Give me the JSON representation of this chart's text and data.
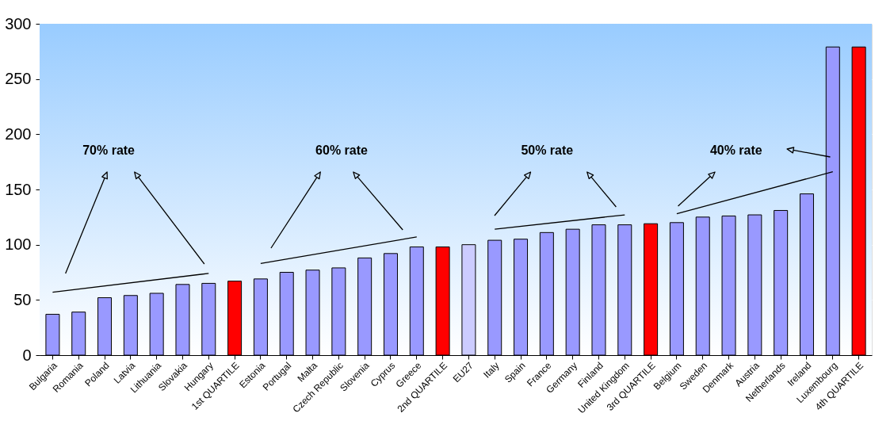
{
  "chart_data": {
    "type": "bar",
    "categories": [
      "Bulgaria",
      "Romania",
      "Poland",
      "Latvia",
      "Lithuania",
      "Slovakia",
      "Hungary",
      "1st QUARTILE",
      "Estonia",
      "Portugal",
      "Malta",
      "Czech Republic",
      "Slovenia",
      "Cyprus",
      "Greece",
      "2nd QUARTILE",
      "EU27",
      "Italy",
      "Spain",
      "France",
      "Germany",
      "Finland",
      "United Kingdom",
      "3rd QUARTILE",
      "Belgium",
      "Sweden",
      "Denmark",
      "Austria",
      "Netherlands",
      "Ireland",
      "Luxembourg",
      "4th QUARTILE"
    ],
    "values": [
      37,
      39,
      52,
      54,
      56,
      64,
      65,
      67,
      69,
      75,
      77,
      79,
      88,
      92,
      98,
      98,
      100,
      104,
      105,
      111,
      114,
      118,
      118,
      119,
      120,
      125,
      126,
      127,
      131,
      146,
      279,
      279
    ],
    "colors": [
      "#9999ff",
      "#9999ff",
      "#9999ff",
      "#9999ff",
      "#9999ff",
      "#9999ff",
      "#9999ff",
      "#ff0000",
      "#9999ff",
      "#9999ff",
      "#9999ff",
      "#9999ff",
      "#9999ff",
      "#9999ff",
      "#9999ff",
      "#ff0000",
      "#ccccff",
      "#9999ff",
      "#9999ff",
      "#9999ff",
      "#9999ff",
      "#9999ff",
      "#9999ff",
      "#ff0000",
      "#9999ff",
      "#9999ff",
      "#9999ff",
      "#9999ff",
      "#9999ff",
      "#9999ff",
      "#9999ff",
      "#ff0000"
    ],
    "ylim": [
      0,
      300
    ],
    "yticks": [
      0,
      50,
      100,
      150,
      200,
      250,
      300
    ],
    "grid": "y",
    "series": [
      {
        "type": "line",
        "color": "#000000",
        "x": [
          "Bulgaria",
          "Hungary"
        ],
        "values": [
          57,
          74
        ]
      },
      {
        "type": "line",
        "color": "#000000",
        "x": [
          "Estonia",
          "Greece"
        ],
        "values": [
          83,
          107
        ]
      },
      {
        "type": "line",
        "color": "#000000",
        "x": [
          "Italy",
          "United Kingdom"
        ],
        "values": [
          114,
          127
        ]
      },
      {
        "type": "line",
        "color": "#000000",
        "x": [
          "Belgium",
          "Luxembourg"
        ],
        "values": [
          128,
          166
        ]
      }
    ],
    "annotations": [
      "70% rate",
      "60% rate",
      "50% rate",
      "40% rate"
    ]
  }
}
